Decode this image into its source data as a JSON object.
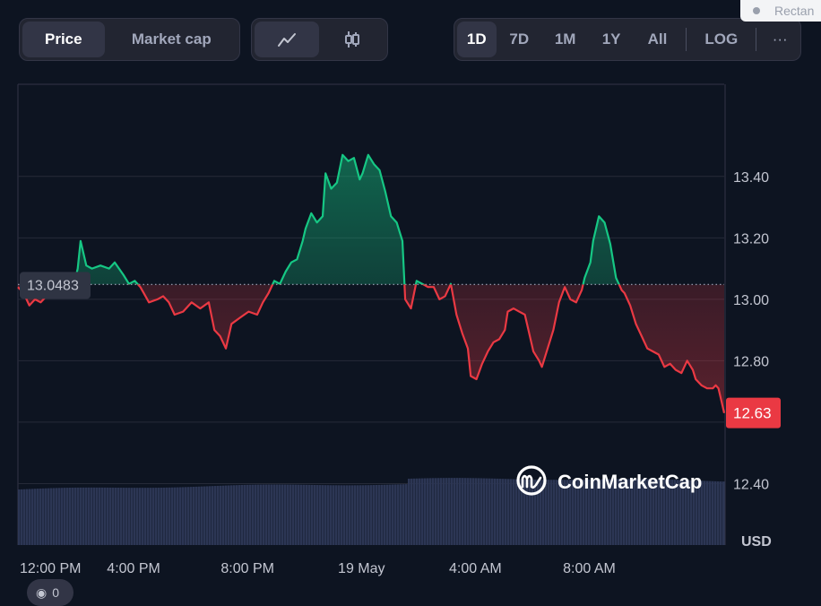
{
  "toolbar": {
    "type_tabs": [
      {
        "label": "Price",
        "active": true
      },
      {
        "label": "Market cap",
        "active": false
      }
    ],
    "chart_style_icons": [
      "line-chart-icon",
      "candlestick-icon"
    ],
    "range_tabs": [
      {
        "label": "1D",
        "active": true
      },
      {
        "label": "7D",
        "active": false
      },
      {
        "label": "1M",
        "active": false
      },
      {
        "label": "1Y",
        "active": false
      },
      {
        "label": "All",
        "active": false
      }
    ],
    "log_label": "LOG",
    "more_label": "···"
  },
  "overlay": {
    "rectangle_label": "Rectan"
  },
  "watermark": {
    "text": "CoinMarketCap"
  },
  "bottom_pill": {
    "text": "0"
  },
  "colors": {
    "up": "#16c784",
    "down": "#ea3943",
    "volume": "#2c3654",
    "background": "#0d1421",
    "reference_label_bg": "#2f3443"
  },
  "chart_data": {
    "type": "area",
    "currency_label": "USD",
    "reference_price": 13.0483,
    "reference_label": "13.0483",
    "current_price": 12.63,
    "current_price_label": "12.63",
    "y_ticks": [
      "13.40",
      "13.20",
      "13.00",
      "12.80",
      "12.40"
    ],
    "ylim": [
      12.2,
      13.7
    ],
    "x_ticks": [
      "12:00 PM",
      "4:00 PM",
      "8:00 PM",
      "19 May",
      "4:00 AM",
      "8:00 AM"
    ],
    "x_tick_hours": [
      0,
      4,
      8,
      12,
      16,
      20
    ],
    "xlim_hours": [
      0,
      24.8
    ],
    "price_series": [
      [
        0.0,
        13.04
      ],
      [
        0.2,
        13.02
      ],
      [
        0.4,
        12.98
      ],
      [
        0.6,
        13.0
      ],
      [
        0.8,
        12.99
      ],
      [
        1.1,
        13.02
      ],
      [
        1.4,
        13.06
      ],
      [
        1.7,
        13.07
      ],
      [
        2.0,
        13.06
      ],
      [
        2.1,
        13.1
      ],
      [
        2.2,
        13.19
      ],
      [
        2.4,
        13.11
      ],
      [
        2.6,
        13.1
      ],
      [
        2.9,
        13.11
      ],
      [
        3.2,
        13.1
      ],
      [
        3.4,
        13.12
      ],
      [
        3.7,
        13.08
      ],
      [
        3.9,
        13.05
      ],
      [
        4.1,
        13.06
      ],
      [
        4.3,
        13.04
      ],
      [
        4.6,
        12.99
      ],
      [
        4.9,
        13.0
      ],
      [
        5.1,
        13.01
      ],
      [
        5.3,
        12.99
      ],
      [
        5.5,
        12.95
      ],
      [
        5.8,
        12.96
      ],
      [
        6.1,
        12.99
      ],
      [
        6.4,
        12.97
      ],
      [
        6.7,
        12.99
      ],
      [
        6.9,
        12.9
      ],
      [
        7.1,
        12.88
      ],
      [
        7.3,
        12.84
      ],
      [
        7.5,
        12.92
      ],
      [
        7.8,
        12.94
      ],
      [
        8.1,
        12.96
      ],
      [
        8.4,
        12.95
      ],
      [
        8.6,
        12.99
      ],
      [
        8.8,
        13.02
      ],
      [
        9.0,
        13.06
      ],
      [
        9.2,
        13.05
      ],
      [
        9.4,
        13.09
      ],
      [
        9.6,
        13.12
      ],
      [
        9.8,
        13.13
      ],
      [
        10.0,
        13.19
      ],
      [
        10.1,
        13.23
      ],
      [
        10.3,
        13.28
      ],
      [
        10.5,
        13.25
      ],
      [
        10.7,
        13.27
      ],
      [
        10.8,
        13.41
      ],
      [
        11.0,
        13.36
      ],
      [
        11.2,
        13.38
      ],
      [
        11.4,
        13.47
      ],
      [
        11.6,
        13.45
      ],
      [
        11.8,
        13.46
      ],
      [
        12.0,
        13.39
      ],
      [
        12.1,
        13.41
      ],
      [
        12.3,
        13.47
      ],
      [
        12.5,
        13.44
      ],
      [
        12.7,
        13.42
      ],
      [
        12.9,
        13.35
      ],
      [
        13.1,
        13.27
      ],
      [
        13.3,
        13.25
      ],
      [
        13.5,
        13.19
      ],
      [
        13.6,
        13.0
      ],
      [
        13.8,
        12.97
      ],
      [
        14.0,
        13.06
      ],
      [
        14.2,
        13.05
      ],
      [
        14.4,
        13.04
      ],
      [
        14.6,
        13.04
      ],
      [
        14.8,
        13.0
      ],
      [
        15.0,
        13.01
      ],
      [
        15.2,
        13.05
      ],
      [
        15.4,
        12.95
      ],
      [
        15.6,
        12.89
      ],
      [
        15.8,
        12.84
      ],
      [
        15.9,
        12.75
      ],
      [
        16.1,
        12.74
      ],
      [
        16.3,
        12.79
      ],
      [
        16.5,
        12.83
      ],
      [
        16.7,
        12.86
      ],
      [
        16.9,
        12.87
      ],
      [
        17.1,
        12.9
      ],
      [
        17.2,
        12.96
      ],
      [
        17.4,
        12.97
      ],
      [
        17.6,
        12.96
      ],
      [
        17.8,
        12.95
      ],
      [
        17.9,
        12.91
      ],
      [
        18.1,
        12.83
      ],
      [
        18.3,
        12.8
      ],
      [
        18.4,
        12.78
      ],
      [
        18.6,
        12.84
      ],
      [
        18.8,
        12.9
      ],
      [
        19.0,
        12.99
      ],
      [
        19.2,
        13.04
      ],
      [
        19.4,
        13.0
      ],
      [
        19.6,
        12.99
      ],
      [
        19.8,
        13.03
      ],
      [
        19.9,
        13.07
      ],
      [
        20.1,
        13.12
      ],
      [
        20.2,
        13.19
      ],
      [
        20.4,
        13.27
      ],
      [
        20.6,
        13.25
      ],
      [
        20.8,
        13.18
      ],
      [
        21.0,
        13.07
      ],
      [
        21.2,
        13.03
      ],
      [
        21.3,
        13.02
      ],
      [
        21.5,
        12.98
      ],
      [
        21.7,
        12.92
      ],
      [
        21.9,
        12.88
      ],
      [
        22.1,
        12.84
      ],
      [
        22.3,
        12.83
      ],
      [
        22.5,
        12.82
      ],
      [
        22.7,
        12.78
      ],
      [
        22.9,
        12.79
      ],
      [
        23.1,
        12.77
      ],
      [
        23.3,
        12.76
      ],
      [
        23.5,
        12.8
      ],
      [
        23.7,
        12.77
      ],
      [
        23.8,
        12.74
      ],
      [
        24.0,
        12.72
      ],
      [
        24.2,
        12.71
      ],
      [
        24.4,
        12.71
      ],
      [
        24.5,
        12.72
      ],
      [
        24.6,
        12.71
      ],
      [
        24.7,
        12.67
      ],
      [
        24.8,
        12.63
      ]
    ]
  }
}
